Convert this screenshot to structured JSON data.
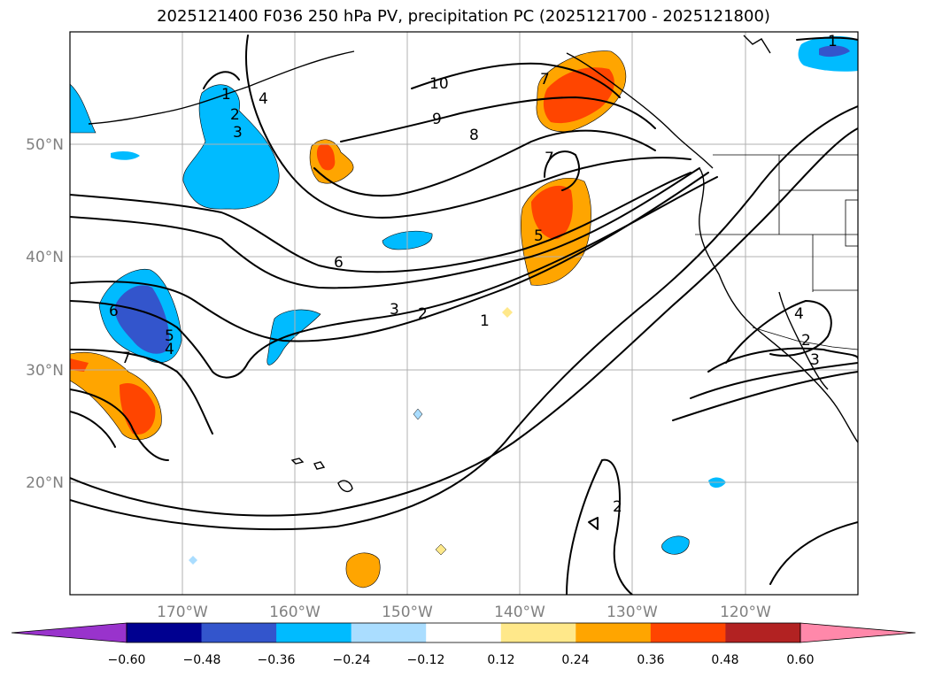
{
  "title": "2025121400 F036 250 hPa PV, precipitation PC (2025121700 - 2025121800)",
  "lat_labels": [
    "50°N",
    "40°N",
    "30°N",
    "20°N"
  ],
  "lon_labels": [
    "170°W",
    "160°W",
    "150°W",
    "140°W",
    "130°W",
    "120°W"
  ],
  "colorbar": {
    "tick_labels": [
      "−0.60",
      "−0.48",
      "−0.36",
      "−0.24",
      "−0.12",
      "0.12",
      "0.24",
      "0.36",
      "0.48",
      "0.60"
    ],
    "colors": [
      "#9933cc",
      "#000090",
      "#3355cc",
      "#00bbff",
      "#aaddff",
      "#ffffff",
      "#ffe88a",
      "#ffa500",
      "#ff4500",
      "#b22222",
      "#ff88aa"
    ]
  },
  "contour_labels": [
    "10",
    "9",
    "8",
    "7",
    "6",
    "5",
    "4",
    "3",
    "2",
    "1",
    "7",
    "6",
    "5",
    "4",
    "3",
    "2",
    "1",
    "7",
    "4",
    "3",
    "2",
    "2",
    "1"
  ],
  "map_extent": {
    "lon_min": -180,
    "lon_max": -110,
    "lat_min": 10,
    "lat_max": 60
  }
}
